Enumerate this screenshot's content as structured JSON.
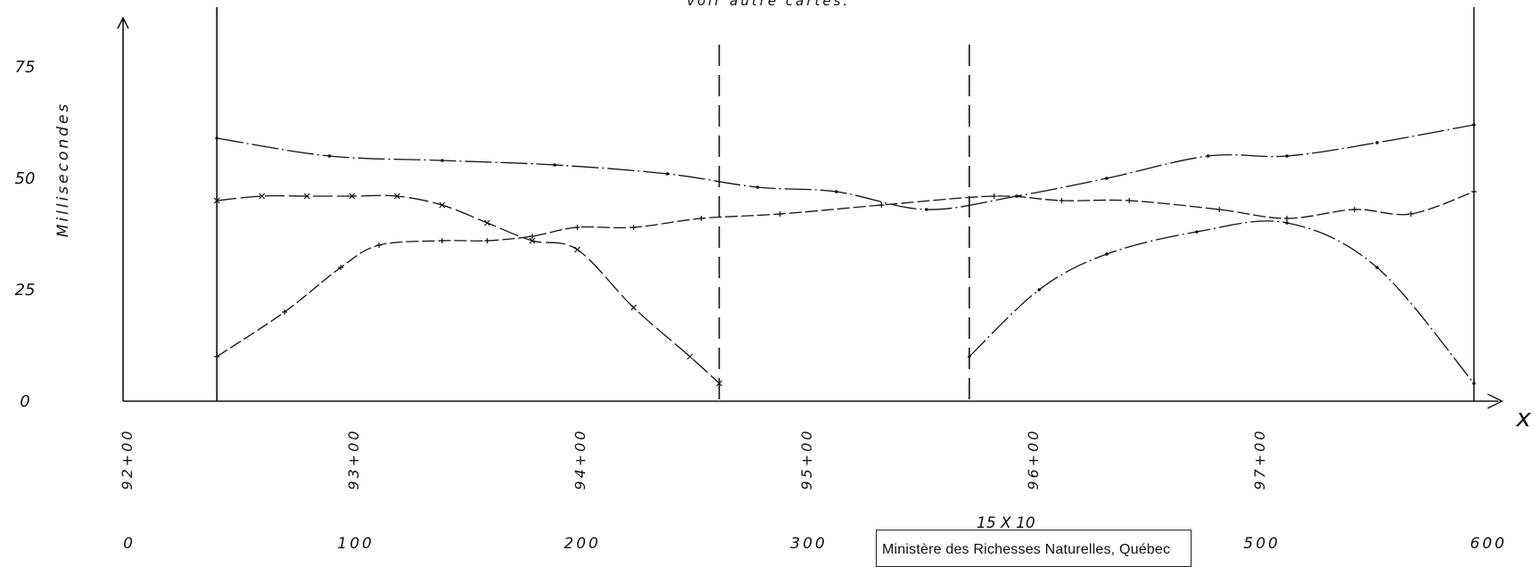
{
  "top_note": "voir autre cartes.",
  "scale_note": "15 X 10",
  "stamp": "Ministère des Richesses Naturelles, Québec",
  "chart_data": {
    "type": "line",
    "title": "",
    "ylabel": "Millisecondes",
    "xlabel": "x",
    "xlim": [
      0,
      600
    ],
    "ylim": [
      0,
      78
    ],
    "x_ticks": [
      "0",
      "100",
      "200",
      "300",
      "400",
      "500",
      "600"
    ],
    "y_ticks": [
      "0",
      "25",
      "50",
      "75"
    ],
    "station_labels": [
      "92+00",
      "93+00",
      "94+00",
      "95+00",
      "96+00",
      "97+00"
    ],
    "vertical_solid_x": [
      25,
      583
    ],
    "vertical_dashed_x": [
      248,
      359
    ],
    "grid": false,
    "legend": "none",
    "series": [
      {
        "marker": "dot",
        "x": [
          25,
          75,
          125,
          175,
          225,
          265,
          300,
          340,
          380,
          420,
          465,
          500,
          540,
          583
        ],
        "y": [
          59,
          55,
          54,
          53,
          51,
          48,
          47,
          43,
          46,
          50,
          55,
          55,
          58,
          62
        ]
      },
      {
        "marker": "x",
        "x": [
          25,
          45,
          65,
          85,
          105,
          125,
          145,
          165,
          185,
          210,
          235,
          248
        ],
        "y": [
          45,
          46,
          46,
          46,
          46,
          44,
          40,
          36,
          34,
          21,
          10,
          4
        ]
      },
      {
        "marker": "plus",
        "x": [
          25,
          55,
          80,
          97,
          125,
          145,
          165,
          185,
          210,
          240,
          275,
          320,
          370,
          400,
          430,
          470,
          500,
          530,
          555,
          583
        ],
        "y": [
          10,
          20,
          30,
          35,
          36,
          36,
          37,
          39,
          39,
          41,
          42,
          44,
          46,
          45,
          45,
          43,
          41,
          43,
          42,
          47
        ]
      },
      {
        "marker": "dot",
        "x": [
          359,
          390,
          420,
          460,
          500,
          540,
          583
        ],
        "y": [
          10,
          25,
          33,
          38,
          40,
          30,
          4
        ]
      }
    ]
  }
}
